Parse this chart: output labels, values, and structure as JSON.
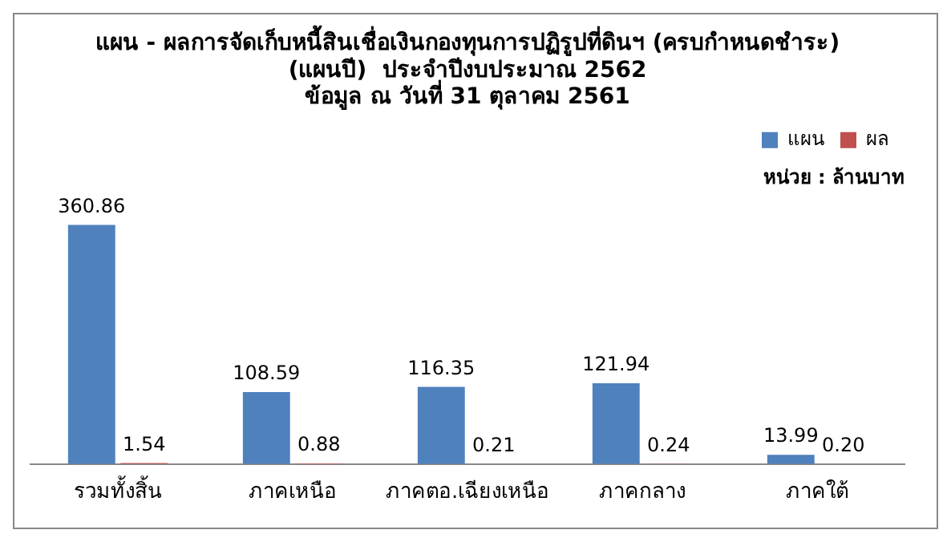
{
  "chart_data": {
    "type": "bar",
    "title": "แผน - ผลการจัดเก็บหนี้สินเชื่อเงินกองทุนการปฏิรูปที่ดินฯ (ครบกำหนดชำระ)\n(แผนปี)  ประจำปีงบประมาณ 2562\nข้อมูล ณ วันที่ 31 ตุลาคม 2561",
    "categories": [
      "รวมทั้งสิ้น",
      "ภาคเหนือ",
      "ภาคตอ.เฉียงเหนือ",
      "ภาคกลาง",
      "ภาคใต้"
    ],
    "series": [
      {
        "name": "แผน",
        "color": "#4f81bd",
        "values": [
          360.86,
          108.59,
          116.35,
          121.94,
          13.99
        ],
        "value_labels": [
          "360.86",
          "108.59",
          "116.35",
          "121.94",
          "13.99"
        ]
      },
      {
        "name": "ผล",
        "color": "#c0504d",
        "values": [
          1.54,
          0.88,
          0.21,
          0.24,
          0.2
        ],
        "value_labels": [
          "1.54",
          "0.88",
          "0.21",
          "0.24",
          "0.20"
        ]
      }
    ],
    "legend": "top right",
    "grid": false,
    "annotations": [
      "หน่วย : ล้านบาท"
    ]
  }
}
